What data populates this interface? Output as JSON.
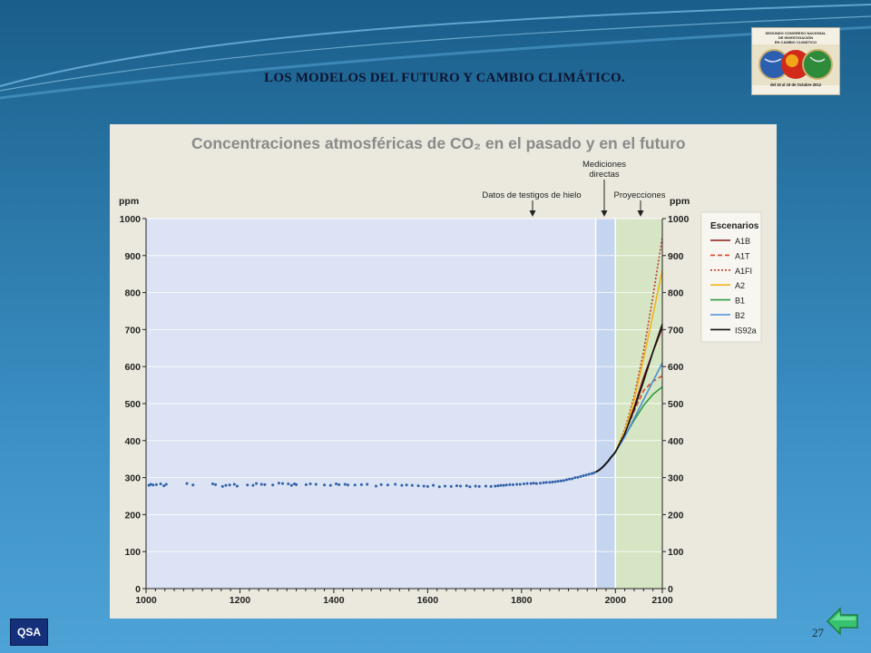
{
  "slide": {
    "title": "LOS MODELOS DEL FUTURO Y CAMBIO CLIMÁTICO.",
    "page_number": "27",
    "badge": "QSA"
  },
  "logo": {
    "lines": [
      "SEGUNDO CONGRESO NACIONAL",
      "DE INVESTIGACIÓN",
      "EN CAMBIO CLIMÁTICO"
    ],
    "dates": "del 15 al 19 de Octubre 2012"
  },
  "colors": {
    "A1B": "#8b1a1a",
    "A1T": "#d9472b",
    "A1FI": "#c0392b",
    "A2": "#f0b51c",
    "B1": "#2e9b3e",
    "B2": "#4a90d9",
    "IS92a": "#111111",
    "historical": "#2f5fa8"
  },
  "chart_data": {
    "type": "scatter",
    "title": "Concentraciones atmosféricas de CO₂ en el pasado y en el futuro",
    "ylabel_left": "ppm",
    "ylabel_right": "ppm",
    "xlim": [
      1000,
      2100
    ],
    "ylim": [
      0,
      1000
    ],
    "x_ticks": [
      1000,
      1200,
      1400,
      1600,
      1800,
      2000,
      2100
    ],
    "y_ticks": [
      0,
      100,
      200,
      300,
      400,
      500,
      600,
      700,
      800,
      900,
      1000
    ],
    "annotations": {
      "ice_cores": "Datos de testigos de hielo",
      "direct_line1": "Mediciones",
      "direct_line2": "directas",
      "projections": "Proyecciones"
    },
    "legend_title": "Escenarios",
    "legend_position": "right",
    "regions": [
      {
        "name": "direct measurements",
        "x": [
          1958,
          2000
        ]
      },
      {
        "name": "projections",
        "x": [
          2000,
          2100
        ]
      }
    ],
    "series": [
      {
        "name": "Datos de testigos de hielo",
        "type": "scatter",
        "x": [
          1006,
          1010,
          1015,
          1022,
          1031,
          1038,
          1043,
          1087,
          1100,
          1142,
          1148,
          1163,
          1170,
          1178,
          1188,
          1194,
          1216,
          1228,
          1235,
          1246,
          1253,
          1270,
          1283,
          1291,
          1303,
          1310,
          1316,
          1320,
          1341,
          1350,
          1362,
          1380,
          1393,
          1405,
          1411,
          1424,
          1430,
          1445,
          1459,
          1471,
          1490,
          1501,
          1515,
          1531,
          1545,
          1555,
          1567,
          1580,
          1592,
          1600,
          1612,
          1625,
          1637,
          1650,
          1662,
          1670,
          1683,
          1690,
          1702,
          1710,
          1724,
          1735,
          1744,
          1750,
          1756,
          1762,
          1768,
          1775,
          1782,
          1790,
          1797,
          1805,
          1812,
          1820,
          1826,
          1832,
          1840,
          1847,
          1853,
          1860,
          1866,
          1872,
          1878,
          1884,
          1890,
          1896,
          1902,
          1908,
          1914,
          1920,
          1926,
          1932,
          1938,
          1944,
          1950,
          1955
        ],
        "y": [
          279,
          282,
          280,
          281,
          283,
          278,
          282,
          284,
          280,
          283,
          281,
          276,
          279,
          280,
          282,
          277,
          280,
          279,
          284,
          282,
          281,
          280,
          285,
          284,
          283,
          279,
          283,
          281,
          281,
          283,
          282,
          280,
          279,
          283,
          281,
          282,
          280,
          280,
          281,
          282,
          277,
          281,
          280,
          282,
          279,
          280,
          279,
          278,
          277,
          276,
          279,
          275,
          277,
          276,
          278,
          277,
          278,
          275,
          277,
          276,
          277,
          276,
          277,
          278,
          279,
          279,
          280,
          281,
          281,
          282,
          282,
          283,
          284,
          284,
          285,
          284,
          285,
          286,
          287,
          287,
          288,
          289,
          290,
          291,
          292,
          294,
          296,
          297,
          300,
          301,
          303,
          305,
          307,
          309,
          311,
          313
        ]
      },
      {
        "name": "Mediciones directas",
        "type": "line",
        "x": [
          1958,
          1965,
          1970,
          1975,
          1980,
          1985,
          1990,
          1995,
          2000
        ],
        "y": [
          315,
          320,
          325,
          331,
          338,
          345,
          354,
          361,
          369
        ]
      },
      {
        "name": "A1B",
        "x": [
          2000,
          2020,
          2040,
          2060,
          2080,
          2100
        ],
        "y": [
          369,
          420,
          490,
          570,
          640,
          705
        ]
      },
      {
        "name": "A1T",
        "x": [
          2000,
          2020,
          2040,
          2060,
          2080,
          2100
        ],
        "y": [
          369,
          420,
          480,
          535,
          560,
          575
        ]
      },
      {
        "name": "A1FI",
        "x": [
          2000,
          2020,
          2040,
          2060,
          2080,
          2100
        ],
        "y": [
          369,
          430,
          520,
          640,
          790,
          950
        ]
      },
      {
        "name": "A2",
        "x": [
          2000,
          2020,
          2040,
          2060,
          2080,
          2100
        ],
        "y": [
          369,
          425,
          510,
          620,
          740,
          860
        ]
      },
      {
        "name": "B1",
        "x": [
          2000,
          2020,
          2040,
          2060,
          2080,
          2100
        ],
        "y": [
          369,
          412,
          455,
          495,
          525,
          545
        ]
      },
      {
        "name": "B2",
        "x": [
          2000,
          2020,
          2040,
          2060,
          2080,
          2100
        ],
        "y": [
          369,
          410,
          460,
          510,
          560,
          610
        ]
      },
      {
        "name": "IS92a",
        "x": [
          2000,
          2020,
          2040,
          2060,
          2080,
          2100
        ],
        "y": [
          369,
          418,
          485,
          560,
          640,
          715
        ]
      }
    ]
  }
}
